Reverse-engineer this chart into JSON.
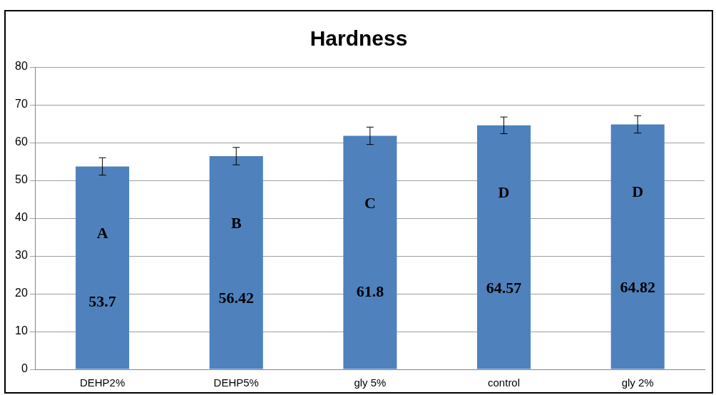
{
  "chart_data": {
    "type": "bar",
    "title": "Hardness",
    "categories": [
      "DEHP2%",
      "DEHP5%",
      "gly 5%",
      "control",
      "gly 2%"
    ],
    "values": [
      53.7,
      56.42,
      61.8,
      64.57,
      64.82
    ],
    "errors": [
      2.3,
      2.3,
      2.3,
      2.2,
      2.3
    ],
    "color": "#4f81bd",
    "ylim": [
      0,
      80
    ],
    "yticks": [
      0,
      10,
      20,
      30,
      40,
      50,
      60,
      70,
      80
    ],
    "grid": "y",
    "legend": false,
    "data_labels": true,
    "annotations": [
      "A",
      "B",
      "C",
      "D",
      "D"
    ]
  }
}
